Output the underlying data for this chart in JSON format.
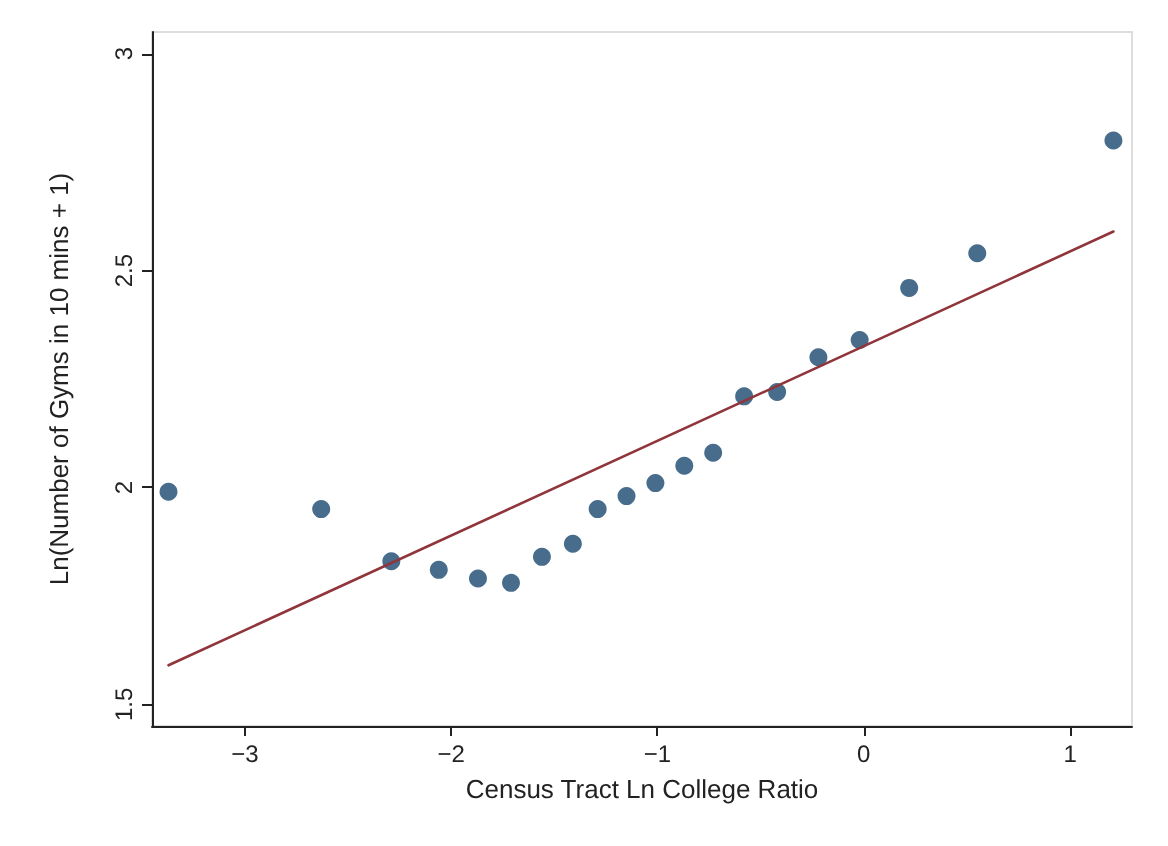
{
  "chart_data": {
    "type": "scatter",
    "xlabel": "Census Tract Ln College Ratio",
    "ylabel": "Ln(Number of Gyms in 10 mins + 1)",
    "xlim": [
      -3.45,
      1.3
    ],
    "ylim": [
      1.45,
      3.05
    ],
    "xticks": [
      -3,
      -2,
      -1,
      0,
      1
    ],
    "yticks": [
      1.5,
      2,
      2.5,
      3
    ],
    "grid": false,
    "marker": "circle",
    "series": [
      {
        "color": "#1a476f",
        "x": [
          -3.37,
          -2.63,
          -2.29,
          -2.06,
          -1.87,
          -1.71,
          -1.56,
          -1.41,
          -1.29,
          -1.15,
          -1.01,
          -0.87,
          -0.73,
          -0.58,
          -0.42,
          -0.22,
          -0.02,
          0.22,
          0.55,
          1.21
        ],
        "values": [
          1.99,
          1.95,
          1.83,
          1.81,
          1.79,
          1.78,
          1.84,
          1.87,
          1.95,
          1.98,
          2.01,
          2.05,
          2.08,
          2.21,
          2.22,
          2.3,
          2.34,
          2.46,
          2.54,
          2.8
        ]
      },
      {
        "type": "line",
        "color": "#90353b",
        "x": [
          -3.37,
          1.21
        ],
        "values": [
          1.59,
          2.59
        ],
        "marker": "none"
      }
    ]
  }
}
